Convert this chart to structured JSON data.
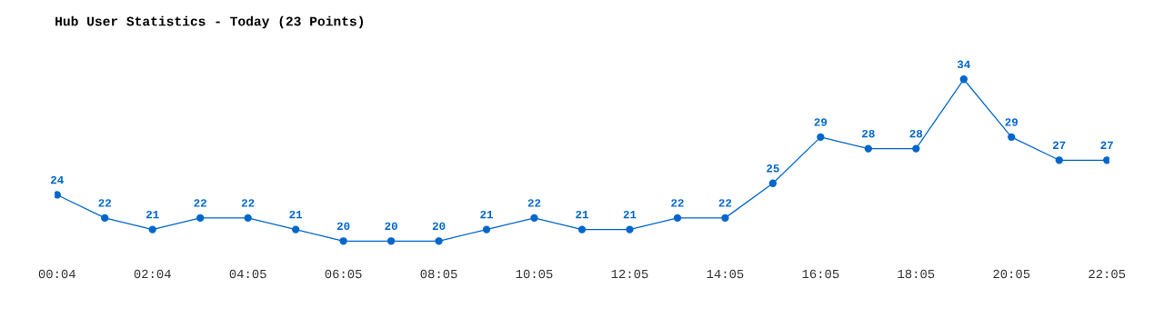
{
  "chart_data": {
    "type": "line",
    "title": "Hub User Statistics - Today (23 Points)",
    "categories": [
      "00:04",
      null,
      "02:04",
      null,
      "04:05",
      null,
      "06:05",
      null,
      "08:05",
      null,
      "10:05",
      null,
      "12:05",
      null,
      "14:05",
      null,
      "16:05",
      null,
      "18:05",
      null,
      "20:05",
      null,
      "22:05"
    ],
    "series": [
      {
        "color": "#0066cc",
        "values": [
          24,
          22,
          21,
          22,
          22,
          21,
          20,
          20,
          20,
          21,
          22,
          21,
          21,
          22,
          22,
          25,
          29,
          28,
          28,
          34,
          29,
          27,
          27
        ]
      }
    ],
    "data_labels": true,
    "marker": "circle",
    "line_style": "solid",
    "grid": false,
    "legend": false,
    "tick_labels": "x"
  }
}
